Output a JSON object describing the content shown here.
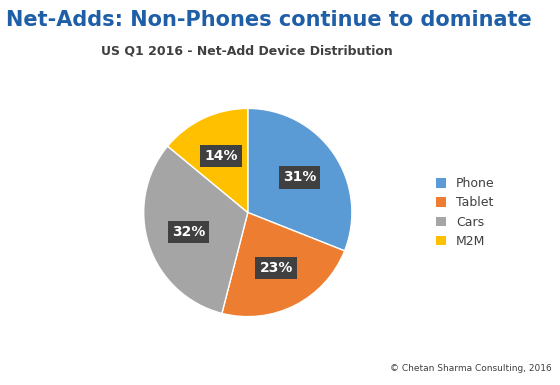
{
  "chart_data": {
    "type": "pie",
    "title": "Net-Adds: Non-Phones continue to dominate",
    "subtitle": "US Q1 2016 - Net-Add Device Distribution",
    "categories": [
      "Phone",
      "Tablet",
      "Cars",
      "M2M"
    ],
    "values": [
      31,
      23,
      32,
      14
    ],
    "value_labels": [
      "31%",
      "23%",
      "32%",
      "14%"
    ],
    "data_labels": true,
    "colors": [
      "#5B9BD5",
      "#ED7D31",
      "#A5A5A5",
      "#FFC000"
    ],
    "legend": "right",
    "annotations": [
      "© Chetan Sharma Consulting, 2016"
    ]
  }
}
